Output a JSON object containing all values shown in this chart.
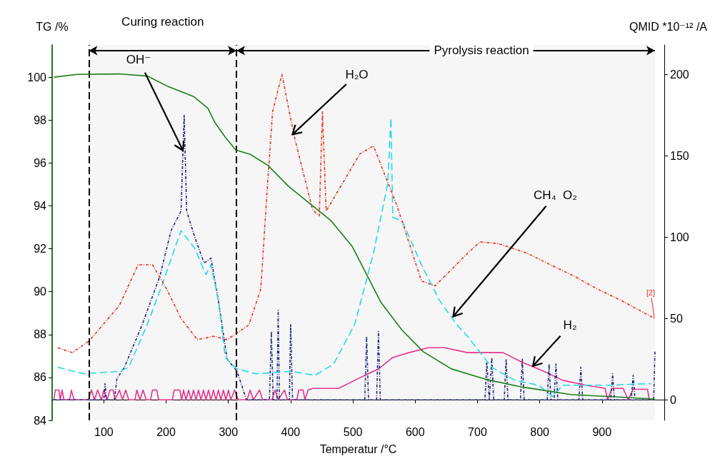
{
  "chart_data": {
    "type": "line",
    "xlabel": "Temperatur /°C",
    "ylabel": "TG /%",
    "y2label": "QMID *10⁻¹² /A",
    "xlim": [
      17,
      1000
    ],
    "ylim": [
      84,
      101.5
    ],
    "y2lim": [
      -12.6,
      218
    ],
    "xticks": [
      100,
      200,
      300,
      400,
      500,
      600,
      700,
      800,
      900
    ],
    "yticks": [
      84,
      86,
      88,
      90,
      92,
      94,
      96,
      98,
      100
    ],
    "y2ticks": [
      0,
      50,
      100,
      150,
      200
    ],
    "marker": "none",
    "series": [
      {
        "color": "#1a7f1a",
        "line_style": "solid",
        "x": [
          20,
          57,
          125,
          170,
          204,
          244,
          267,
          278,
          295,
          312,
          335,
          363,
          397,
          431,
          465,
          499,
          522,
          545,
          579,
          613,
          658,
          715,
          772,
          851,
          919,
          981,
          986
        ],
        "values": [
          100.0,
          100.13,
          100.15,
          100.05,
          99.55,
          99.1,
          98.55,
          97.9,
          97.2,
          96.6,
          96.4,
          95.9,
          94.9,
          94.1,
          93.3,
          92.1,
          90.8,
          89.5,
          88.2,
          87.2,
          86.4,
          85.9,
          85.55,
          85.2,
          85.1,
          85.0,
          84.95
        ]
      },
      {
        "color": "#e8301c",
        "line_style": "dotted",
        "axis": "y2",
        "x": [
          26,
          49,
          76,
          125,
          155,
          178,
          201,
          224,
          250,
          276,
          298,
          333,
          352,
          363,
          371,
          386,
          405,
          435,
          446,
          451,
          457,
          511,
          533,
          571,
          610,
          632,
          666,
          684,
          704,
          734,
          780,
          817,
          855,
          893,
          931,
          984
        ],
        "values": [
          32,
          29,
          36,
          58,
          83,
          83,
          68,
          50,
          37,
          39,
          37,
          46,
          68,
          133,
          177,
          200,
          163,
          117,
          113,
          177,
          116,
          151,
          156,
          119,
          73,
          70,
          83,
          90,
          97,
          96,
          90,
          83,
          76,
          68,
          61,
          50
        ]
      },
      {
        "color": "#22dbe8",
        "line_style": "dashed",
        "axis": "y2",
        "x": [
          26,
          68,
          125,
          140,
          170,
          193,
          224,
          246,
          264,
          272,
          284,
          295,
          314,
          344,
          401,
          439,
          469,
          503,
          533,
          556,
          561,
          564,
          579,
          610,
          639,
          666,
          684,
          723,
          760,
          798,
          821,
          837,
          911,
          979
        ],
        "values": [
          20,
          16,
          17.5,
          20,
          46.5,
          70,
          104,
          93,
          77,
          83,
          61,
          26,
          19,
          16,
          17.5,
          15,
          22,
          46.5,
          90,
          133,
          173,
          112,
          110,
          83,
          61,
          46.5,
          39,
          20,
          12,
          9,
          2,
          9,
          9,
          10
        ]
      },
      {
        "color": "#1a237e",
        "line_style": "dotted",
        "axis": "y2",
        "x": [
          20,
          100,
          102,
          104,
          117,
          121,
          133,
          162,
          190,
          208,
          224,
          229,
          233,
          246,
          261,
          272,
          284,
          298,
          314,
          329,
          366,
          369,
          372,
          378,
          380,
          382,
          398,
          400,
          403,
          519,
          522,
          525,
          538,
          541,
          544,
          712,
          715,
          719,
          723,
          726,
          743,
          746,
          749,
          769,
          772,
          775,
          812,
          815,
          818,
          823,
          826,
          829,
          863,
          866,
          869,
          914,
          917,
          920,
          947,
          950,
          953,
          983,
          985
        ],
        "values": [
          0,
          0,
          10,
          0,
          0,
          13,
          20,
          46.5,
          76,
          104,
          116,
          175,
          116,
          100,
          84,
          87,
          61,
          25,
          17.5,
          0,
          0,
          42,
          0,
          0,
          55,
          0,
          0,
          46.5,
          0,
          0,
          39,
          0,
          0,
          42,
          0,
          0,
          23,
          0,
          26,
          0,
          0,
          25,
          0,
          0,
          25,
          0,
          0,
          22,
          0,
          0,
          22,
          0,
          0,
          20,
          0,
          0,
          16,
          0,
          0,
          15,
          0,
          0,
          30
        ]
      },
      {
        "color": "#e8328a",
        "line_style": "solid",
        "axis": "y2",
        "x": [
          20,
          22,
          28,
          30,
          33,
          36,
          45,
          48,
          52,
          75,
          80,
          85,
          90,
          96,
          100,
          105,
          110,
          115,
          118,
          125,
          130,
          135,
          140,
          150,
          153,
          158,
          163,
          168,
          175,
          178,
          185,
          188,
          210,
          213,
          222,
          225,
          228,
          232,
          236,
          240,
          244,
          248,
          252,
          256,
          260,
          264,
          268,
          272,
          276,
          280,
          284,
          288,
          292,
          296,
          300,
          304,
          310,
          316,
          330,
          335,
          340,
          350,
          355,
          370,
          375,
          380,
          390,
          395,
          410,
          413,
          420,
          423,
          428,
          435,
          477,
          503,
          519,
          541,
          564,
          590,
          621,
          647,
          684,
          741,
          772,
          798,
          837,
          874,
          905,
          909,
          916,
          934,
          942,
          950,
          973,
          976,
          980
        ],
        "values": [
          0,
          6,
          6,
          0,
          6,
          0,
          0,
          6,
          0,
          0,
          6,
          0,
          6,
          0,
          6,
          0,
          6,
          6,
          0,
          6,
          0,
          6,
          0,
          0,
          6,
          0,
          6,
          0,
          0,
          6,
          6,
          0,
          0,
          6,
          6,
          0,
          6,
          0,
          6,
          0,
          6,
          0,
          6,
          0,
          6,
          0,
          6,
          0,
          6,
          0,
          6,
          0,
          6,
          0,
          6,
          0,
          6,
          0,
          0,
          6,
          0,
          6,
          0,
          0,
          6,
          0,
          6,
          0,
          0,
          6,
          6,
          0,
          6,
          7,
          7,
          12,
          15,
          19,
          26,
          29,
          32,
          32,
          29,
          29,
          23,
          19,
          12,
          9,
          7,
          0,
          7,
          7,
          0,
          6.5,
          6.5,
          0,
          0
        ]
      }
    ],
    "ref_lines": [
      {
        "axis": "x",
        "value": 76,
        "line_style": "dashed"
      },
      {
        "axis": "x",
        "value": 313,
        "line_style": "dashed"
      }
    ],
    "bands": [
      {
        "axis": "x",
        "from": 76,
        "to": 313,
        "label": "Curing reaction"
      },
      {
        "axis": "x",
        "from": 313,
        "to": 985,
        "label": "Pyrolysis reaction"
      }
    ],
    "annotations": [
      {
        "text": "OH⁻",
        "x": 227,
        "y": 96.58
      },
      {
        "text": "H₂O",
        "x": 403,
        "y": 97.33
      },
      {
        "text": "CH₄  O₂",
        "x": 661,
        "y": 88.84
      },
      {
        "text": "H₂",
        "x": 789,
        "y": 86.53
      },
      {
        "text": "[2]",
        "x": 984,
        "y": 88.77
      }
    ]
  }
}
